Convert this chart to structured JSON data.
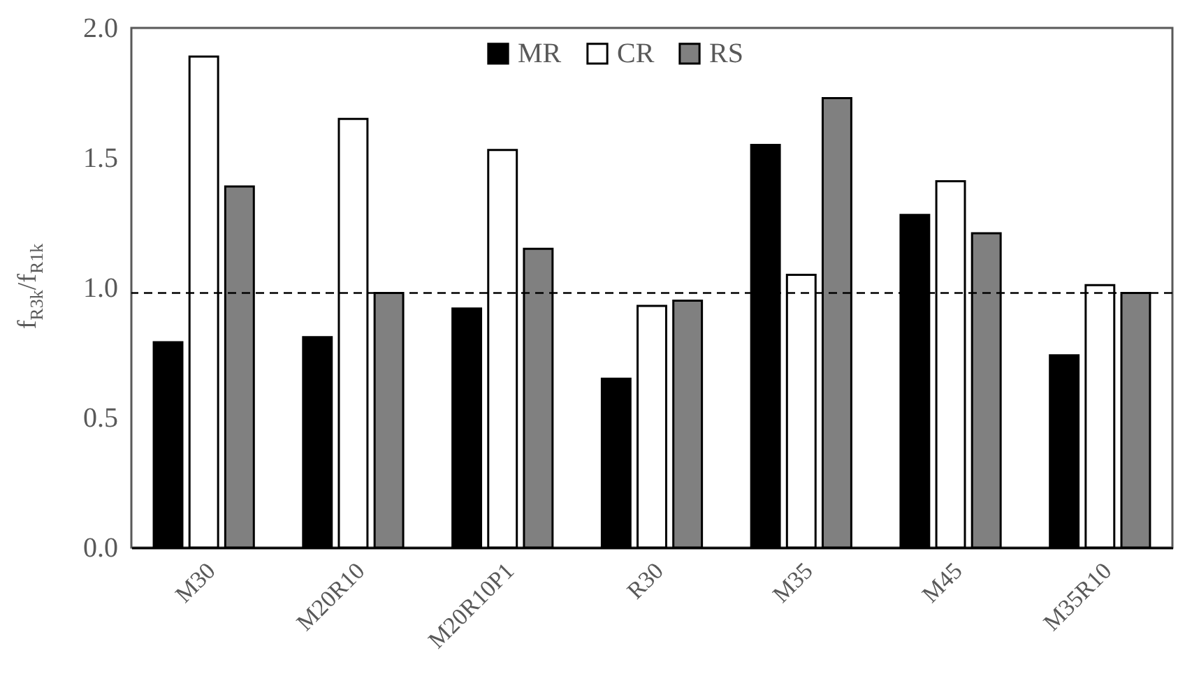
{
  "chart_data": {
    "type": "bar",
    "ylabel": "f$_{R3k}$/f$_{R1k}$",
    "categories": [
      "M30",
      "M20R10",
      "M20R10P1",
      "R30",
      "M35",
      "M45",
      "M35R10"
    ],
    "series": [
      {
        "name": "MR",
        "color": "#000000",
        "values": [
          0.79,
          0.81,
          0.92,
          0.65,
          1.55,
          1.28,
          0.74
        ]
      },
      {
        "name": "CR",
        "color": "#ffffff",
        "values": [
          1.89,
          1.65,
          1.53,
          0.93,
          1.05,
          1.41,
          1.01
        ]
      },
      {
        "name": "RS",
        "color": "#808080",
        "values": [
          1.39,
          0.98,
          1.15,
          0.95,
          1.73,
          1.21,
          0.98
        ]
      }
    ],
    "ylim": [
      0,
      2.0
    ],
    "yticks": [
      {
        "value": 0,
        "label": "0.0"
      },
      {
        "value": 0.5,
        "label": "0.5"
      },
      {
        "value": 1,
        "label": "1.0"
      },
      {
        "value": 1.5,
        "label": "1.5"
      },
      {
        "value": 2,
        "label": "2.0"
      }
    ],
    "ref_lines": [
      {
        "axis": "y",
        "value": 0.98,
        "line_style": "dashed",
        "color": "#000000"
      }
    ],
    "legend": "top",
    "grid": false
  }
}
